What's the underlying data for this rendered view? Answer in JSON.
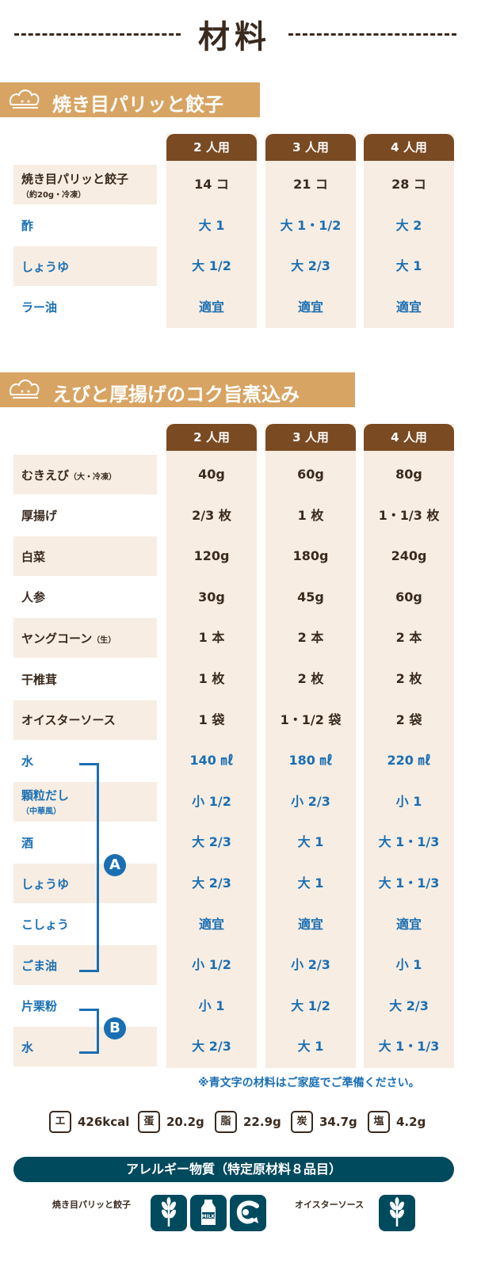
{
  "title": "材料",
  "sections": [
    {
      "title": "焼き目パリッと餃子",
      "servings": [
        "2 人用",
        "3 人用",
        "4 人用"
      ],
      "rows": [
        {
          "label": "焼き目パリッと餃子",
          "sub": "（約20g・冷凍）",
          "values": [
            "14 コ",
            "21 コ",
            "28 コ"
          ],
          "blue": false
        },
        {
          "label": "酢",
          "values": [
            "大 1",
            "大 1・1/2",
            "大 2"
          ],
          "blue": true
        },
        {
          "label": "しょうゆ",
          "values": [
            "大 1/2",
            "大 2/3",
            "大 1"
          ],
          "blue": true
        },
        {
          "label": "ラー油",
          "values": [
            "適宜",
            "適宜",
            "適宜"
          ],
          "blue": true
        }
      ]
    },
    {
      "title": "えびと厚揚げのコク旨煮込み",
      "servings": [
        "2 人用",
        "3 人用",
        "4 人用"
      ],
      "rows": [
        {
          "label": "むきえび",
          "inline": "（大・冷凍）",
          "values": [
            "40g",
            "60g",
            "80g"
          ],
          "blue": false
        },
        {
          "label": "厚揚げ",
          "values": [
            "2/3 枚",
            "1 枚",
            "1・1/3 枚"
          ],
          "blue": false
        },
        {
          "label": "白菜",
          "values": [
            "120g",
            "180g",
            "240g"
          ],
          "blue": false
        },
        {
          "label": "人参",
          "values": [
            "30g",
            "45g",
            "60g"
          ],
          "blue": false
        },
        {
          "label": "ヤングコーン",
          "inline": "（生）",
          "values": [
            "1 本",
            "2 本",
            "2 本"
          ],
          "blue": false
        },
        {
          "label": "干椎茸",
          "values": [
            "1 枚",
            "2 枚",
            "2 枚"
          ],
          "blue": false
        },
        {
          "label": "オイスターソース",
          "values": [
            "1 袋",
            "1・1/2 袋",
            "2 袋"
          ],
          "blue": false
        },
        {
          "label": "水",
          "values": [
            "140 ㎖",
            "180 ㎖",
            "220 ㎖"
          ],
          "blue": true
        },
        {
          "label": "顆粒だし",
          "sub": "（中華風）",
          "values": [
            "小 1/2",
            "小 2/3",
            "小 1"
          ],
          "blue": true
        },
        {
          "label": "酒",
          "values": [
            "大 2/3",
            "大 1",
            "大 1・1/3"
          ],
          "blue": true
        },
        {
          "label": "しょうゆ",
          "values": [
            "大 2/3",
            "大 1",
            "大 1・1/3"
          ],
          "blue": true
        },
        {
          "label": "こしょう",
          "values": [
            "適宜",
            "適宜",
            "適宜"
          ],
          "blue": true
        },
        {
          "label": "ごま油",
          "values": [
            "小 1/2",
            "小 2/3",
            "小 1"
          ],
          "blue": true
        },
        {
          "label": "片栗粉",
          "values": [
            "小 1",
            "大 1/2",
            "大 2/3"
          ],
          "blue": true
        },
        {
          "label": "水",
          "values": [
            "大 2/3",
            "大 1",
            "大 1・1/3"
          ],
          "blue": true
        }
      ],
      "group_a": "A",
      "group_b": "B"
    }
  ],
  "note": "※青文字の材料はご家庭でご準備ください。",
  "nutrition": [
    {
      "key": "エ",
      "value": "426kcal"
    },
    {
      "key": "蛋",
      "value": "20.2g"
    },
    {
      "key": "脂",
      "value": "22.9g"
    },
    {
      "key": "炭",
      "value": "34.7g"
    },
    {
      "key": "塩",
      "value": "4.2g"
    }
  ],
  "allergy": {
    "title": "アレルギー物質（特定原材料８品目）",
    "item1": "焼き目パリッと餃子",
    "item2": "オイスターソース",
    "milk_text": "MILK",
    "icons1": [
      "wheat-icon",
      "milk-icon",
      "shrimp-icon"
    ],
    "icons2": [
      "wheat-icon"
    ]
  },
  "colors": {
    "brown": "#7a4a22",
    "tan": "#d8a463",
    "cream": "#f8ede2",
    "blue": "#1a6fb3",
    "navy": "#004a5e"
  }
}
